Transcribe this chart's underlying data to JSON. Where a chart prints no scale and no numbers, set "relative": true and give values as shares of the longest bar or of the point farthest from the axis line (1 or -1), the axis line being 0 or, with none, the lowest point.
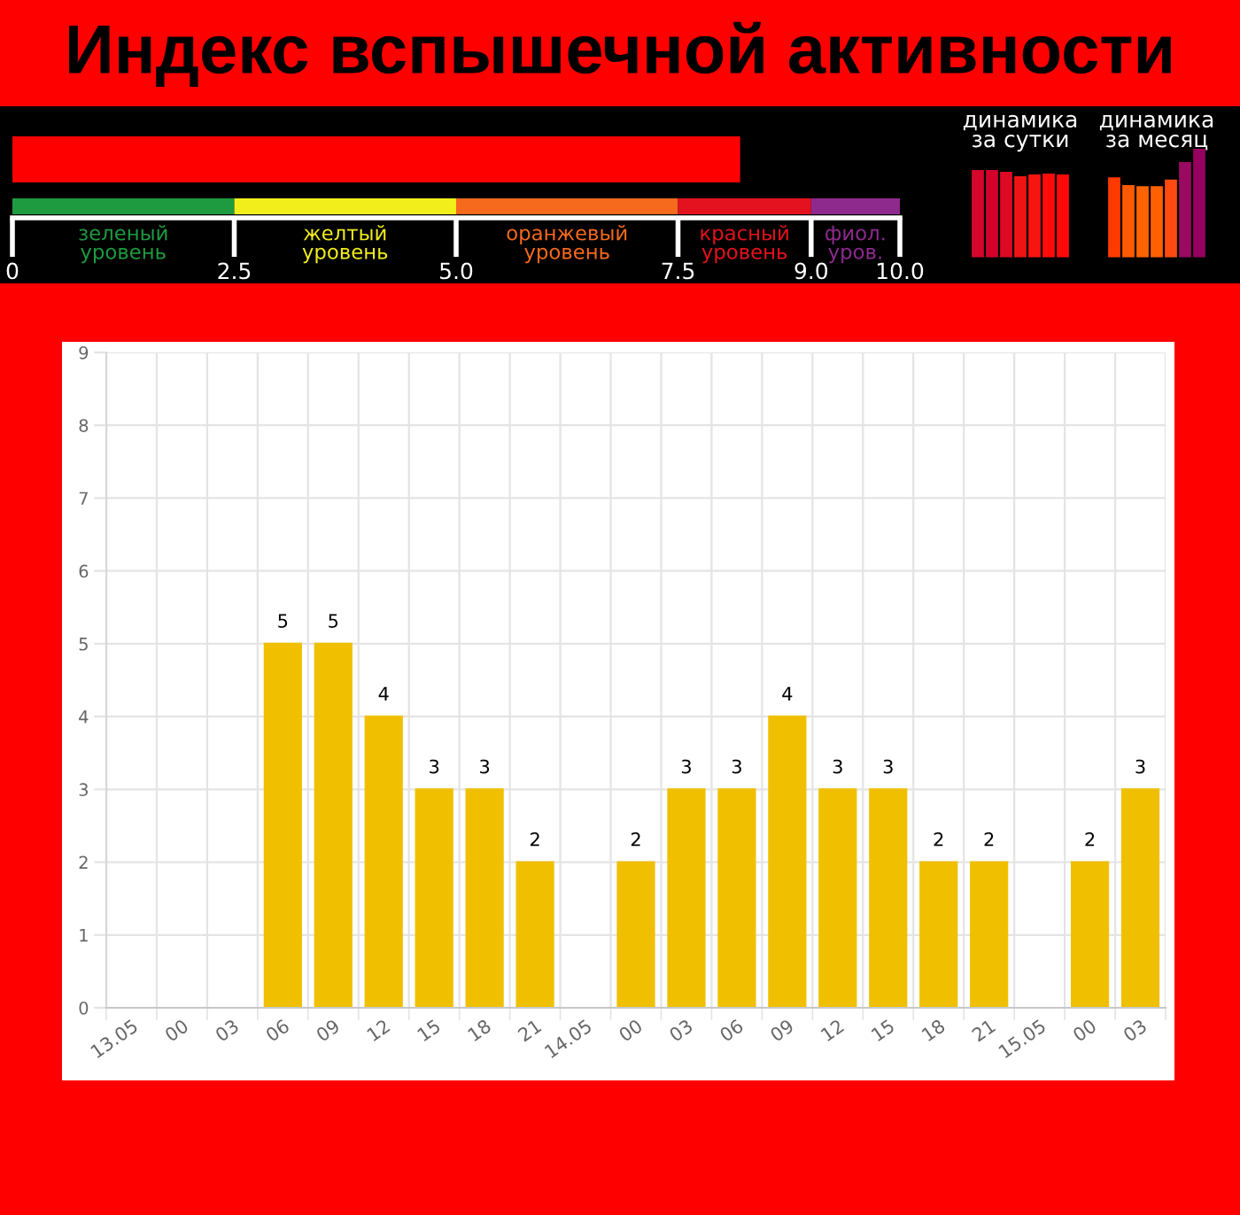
{
  "chart_data": [
    {
      "type": "bar",
      "orientation": "horizontal",
      "title": "Индекс вспышечной активности",
      "categories": [
        null
      ],
      "values": [
        8.2
      ],
      "color": "#ff0000",
      "xlim": [
        0,
        10
      ],
      "xticks": [
        0,
        2.5,
        {
          "value": 5,
          "label": "5.0"
        },
        7.5,
        {
          "value": 9,
          "label": "9.0"
        },
        {
          "value": 10,
          "label": "10.0"
        }
      ],
      "bands": [
        {
          "axis": "x",
          "from": 0,
          "to": 2.5,
          "label": "зеленый\nуровень",
          "color": "#1e9a40"
        },
        {
          "axis": "x",
          "from": 2.5,
          "to": 5,
          "label": "желтый\nуровень",
          "color": "#f2ee1c"
        },
        {
          "axis": "x",
          "from": 5,
          "to": 7.5,
          "label": "оранжевый\nуровень",
          "color": "#f56a1c"
        },
        {
          "axis": "x",
          "from": 7.5,
          "to": 9,
          "label": "красный\nуровень",
          "color": "#e3121e"
        },
        {
          "axis": "x",
          "from": 9,
          "to": 10,
          "label": "фиол.\nуров.",
          "color": "#8e2a8e"
        }
      ],
      "ref_lines": [
        {
          "axis": "x",
          "value": 0,
          "color": "#ffffff"
        },
        {
          "axis": "x",
          "value": 2.5,
          "color": "#ffffff"
        },
        {
          "axis": "x",
          "value": 5,
          "color": "#ffffff"
        },
        {
          "axis": "x",
          "value": 7.5,
          "color": "#ffffff"
        },
        {
          "axis": "x",
          "value": 9,
          "color": "#ffffff"
        },
        {
          "axis": "x",
          "value": 10,
          "color": "#ffffff"
        }
      ]
    },
    {
      "type": "bar",
      "relative": true,
      "title": "динамика\nза сутки",
      "categories": [
        null,
        null,
        null,
        null,
        null,
        null,
        null
      ],
      "values": [
        1,
        1,
        0.98,
        0.93,
        0.95,
        0.96,
        0.95
      ],
      "colors": [
        "#d4062c",
        "#d4002c",
        "#dc0a24",
        "#ee1414",
        "#f81410",
        "#ff0c0a",
        "#ff0a0a"
      ]
    },
    {
      "type": "bar",
      "relative": true,
      "title": "динамика\nза месяц",
      "categories": [
        null,
        null,
        null,
        null,
        null,
        null,
        null
      ],
      "values": [
        0.74,
        0.67,
        0.66,
        0.66,
        0.72,
        0.88,
        1
      ],
      "colors": [
        "#ff3a00",
        "#ff5a00",
        "#ff6400",
        "#ff6000",
        "#ff4a10",
        "#9a0a60",
        "#96005e"
      ]
    },
    {
      "type": "bar",
      "categories": [
        "13.05",
        "00",
        "03",
        "06",
        "09",
        "12",
        "15",
        "18",
        "21",
        "14.05",
        "00",
        "03",
        "06",
        "09",
        "12",
        "15",
        "18",
        "21",
        "15.05",
        "00",
        "03"
      ],
      "values": [
        0,
        0,
        0,
        5,
        5,
        4,
        3,
        3,
        2,
        0,
        2,
        3,
        3,
        4,
        3,
        3,
        2,
        2,
        0,
        2,
        3
      ],
      "color": "#f0c000",
      "value_labels": [
        null,
        null,
        null,
        "5",
        "5",
        "4",
        "3",
        "3",
        "2",
        null,
        "2",
        "3",
        "3",
        "4",
        "3",
        "3",
        "2",
        "2",
        null,
        "2",
        "3"
      ],
      "ylim": [
        0,
        9
      ],
      "yticks": [
        0,
        1,
        2,
        3,
        4,
        5,
        6,
        7,
        8,
        9
      ],
      "grid": true
    }
  ]
}
